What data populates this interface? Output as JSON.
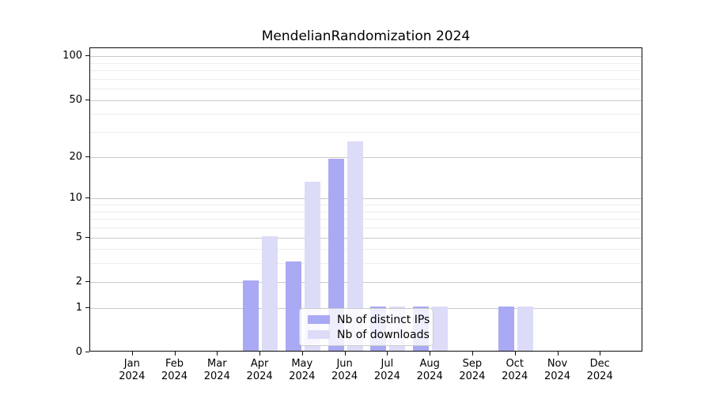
{
  "chart_data": {
    "type": "bar",
    "title": "MendelianRandomization 2024",
    "xlabel": "",
    "ylabel": "",
    "yscale": "log1p",
    "grid": true,
    "legend_position": "lower center",
    "ylim": [
      0,
      115
    ],
    "y_major_ticks": [
      0,
      1,
      2,
      5,
      10,
      20,
      50,
      100
    ],
    "y_minor_gridlines": [
      3,
      4,
      6,
      7,
      8,
      9,
      30,
      40,
      60,
      70,
      80,
      90
    ],
    "categories": [
      "Jan 2024",
      "Feb 2024",
      "Mar 2024",
      "Apr 2024",
      "May 2024",
      "Jun 2024",
      "Jul 2024",
      "Aug 2024",
      "Sep 2024",
      "Oct 2024",
      "Nov 2024",
      "Dec 2024"
    ],
    "series": [
      {
        "name": "Nb of distinct IPs",
        "color": "#a9a9f4",
        "values": [
          0,
          0,
          0,
          2,
          3,
          19,
          1,
          1,
          0,
          1,
          0,
          0
        ]
      },
      {
        "name": "Nb of downloads",
        "color": "#dcdcf8",
        "values": [
          0,
          0,
          0,
          5,
          13,
          25,
          1,
          1,
          0,
          1,
          0,
          0
        ]
      }
    ]
  }
}
